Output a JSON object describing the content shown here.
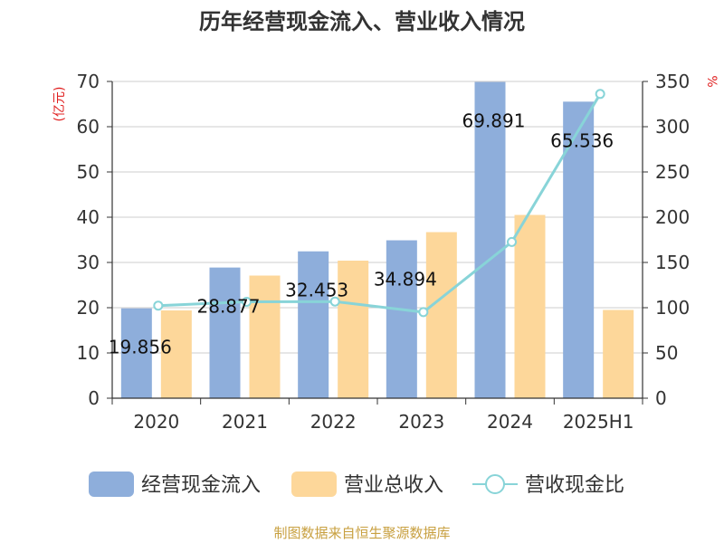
{
  "chart_data": {
    "type": "bar",
    "title": "历年经营现金流入、营业收入情况",
    "categories": [
      "2020",
      "2021",
      "2022",
      "2023",
      "2024",
      "2025H1"
    ],
    "left_axis": {
      "unit": "(亿元)",
      "ylim": [
        0,
        70
      ],
      "ticks": [
        0,
        10,
        20,
        30,
        40,
        50,
        60,
        70
      ]
    },
    "right_axis": {
      "unit": "%",
      "ylim": [
        0,
        350
      ],
      "ticks": [
        0,
        50,
        100,
        150,
        200,
        250,
        300,
        350
      ]
    },
    "series": [
      {
        "name": "经营现金流入",
        "type": "bar",
        "axis": "left",
        "color": "#8eaedb",
        "values": [
          19.856,
          28.877,
          32.453,
          34.894,
          69.891,
          65.536
        ],
        "labels": [
          "19.856",
          "28.877",
          "32.453",
          "34.894",
          "69.891",
          "65.536"
        ]
      },
      {
        "name": "营业总收入",
        "type": "bar",
        "axis": "left",
        "color": "#fdd79a",
        "values": [
          19.4,
          27.1,
          30.4,
          36.7,
          40.5,
          19.5
        ]
      },
      {
        "name": "营收现金比",
        "type": "line",
        "axis": "right",
        "color": "#88d4d8",
        "values": [
          102.3,
          106.5,
          106.8,
          95.1,
          172.6,
          336.2
        ]
      }
    ],
    "grid": true,
    "legend": "bottom"
  },
  "footer": {
    "source": "制图数据来自恒生聚源数据库"
  }
}
